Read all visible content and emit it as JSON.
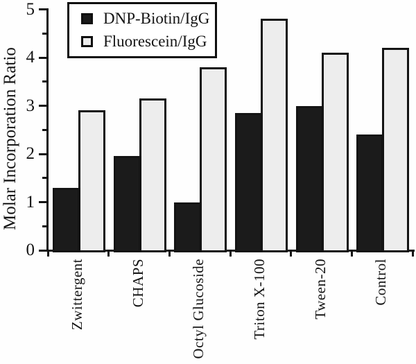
{
  "chart_data": {
    "type": "bar",
    "title": "",
    "xlabel": "",
    "ylabel": "Molar Incorporation Ratio",
    "ylim": [
      0,
      5
    ],
    "yticks": [
      0,
      1,
      2,
      3,
      4,
      5
    ],
    "minor_tick_step": 0.5,
    "grid": false,
    "legend_position": "top-left",
    "categories": [
      "Zwittergent",
      "CHAPS",
      "Octyl Glucoside",
      "Triton X-100",
      "Tween-20",
      "Control"
    ],
    "series": [
      {
        "name": "DNP-Biotin/IgG",
        "color": "#1b1b1b",
        "values": [
          1.3,
          1.95,
          1.0,
          2.85,
          3.0,
          2.4
        ]
      },
      {
        "name": "Fluorescein/IgG",
        "color": "#ededed",
        "values": [
          2.9,
          3.15,
          3.8,
          4.8,
          4.1,
          4.2
        ]
      }
    ],
    "colors": {
      "axis": "#141414",
      "bar_border": "#141414",
      "background": "#fefefe"
    }
  }
}
